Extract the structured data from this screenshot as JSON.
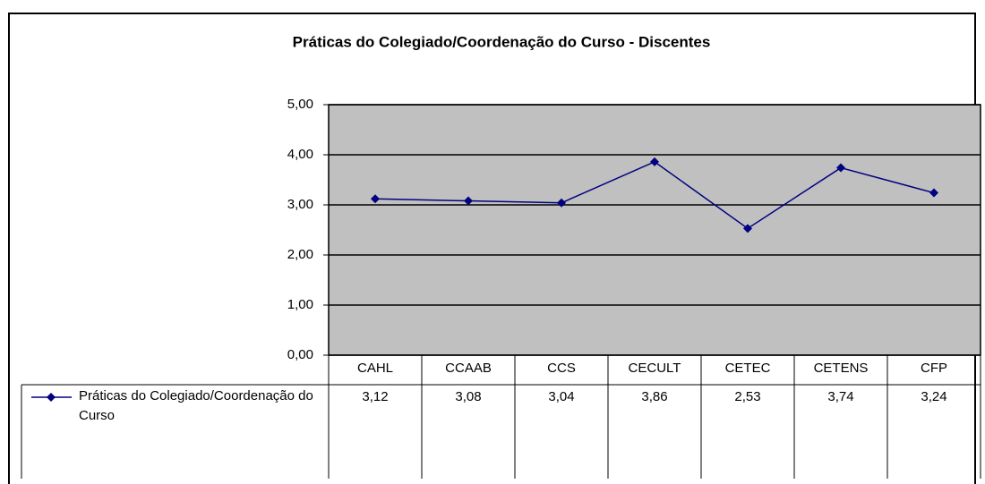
{
  "chart_data": {
    "type": "line",
    "title": "Práticas do Colegiado/Coordenação do Curso - Discentes",
    "categories": [
      "CAHL",
      "CCAAB",
      "CCS",
      "CECULT",
      "CETEC",
      "CETENS",
      "CFP"
    ],
    "series": [
      {
        "name": "Práticas do Colegiado/Coordenação do Curso",
        "color": "#000080",
        "values": [
          3.12,
          3.08,
          3.04,
          3.86,
          2.53,
          3.74,
          3.24
        ],
        "value_labels": [
          "3,12",
          "3,08",
          "3,04",
          "3,86",
          "2,53",
          "3,74",
          "3,24"
        ]
      }
    ],
    "ylim": [
      0,
      5
    ],
    "yticks": [
      {
        "value": 0,
        "label": "0,00"
      },
      {
        "value": 1,
        "label": "1,00"
      },
      {
        "value": 2,
        "label": "2,00"
      },
      {
        "value": 3,
        "label": "3,00"
      },
      {
        "value": 4,
        "label": "4,00"
      },
      {
        "value": 5,
        "label": "5,00"
      }
    ],
    "grid": true,
    "plot_background": "#c0c0c0"
  }
}
